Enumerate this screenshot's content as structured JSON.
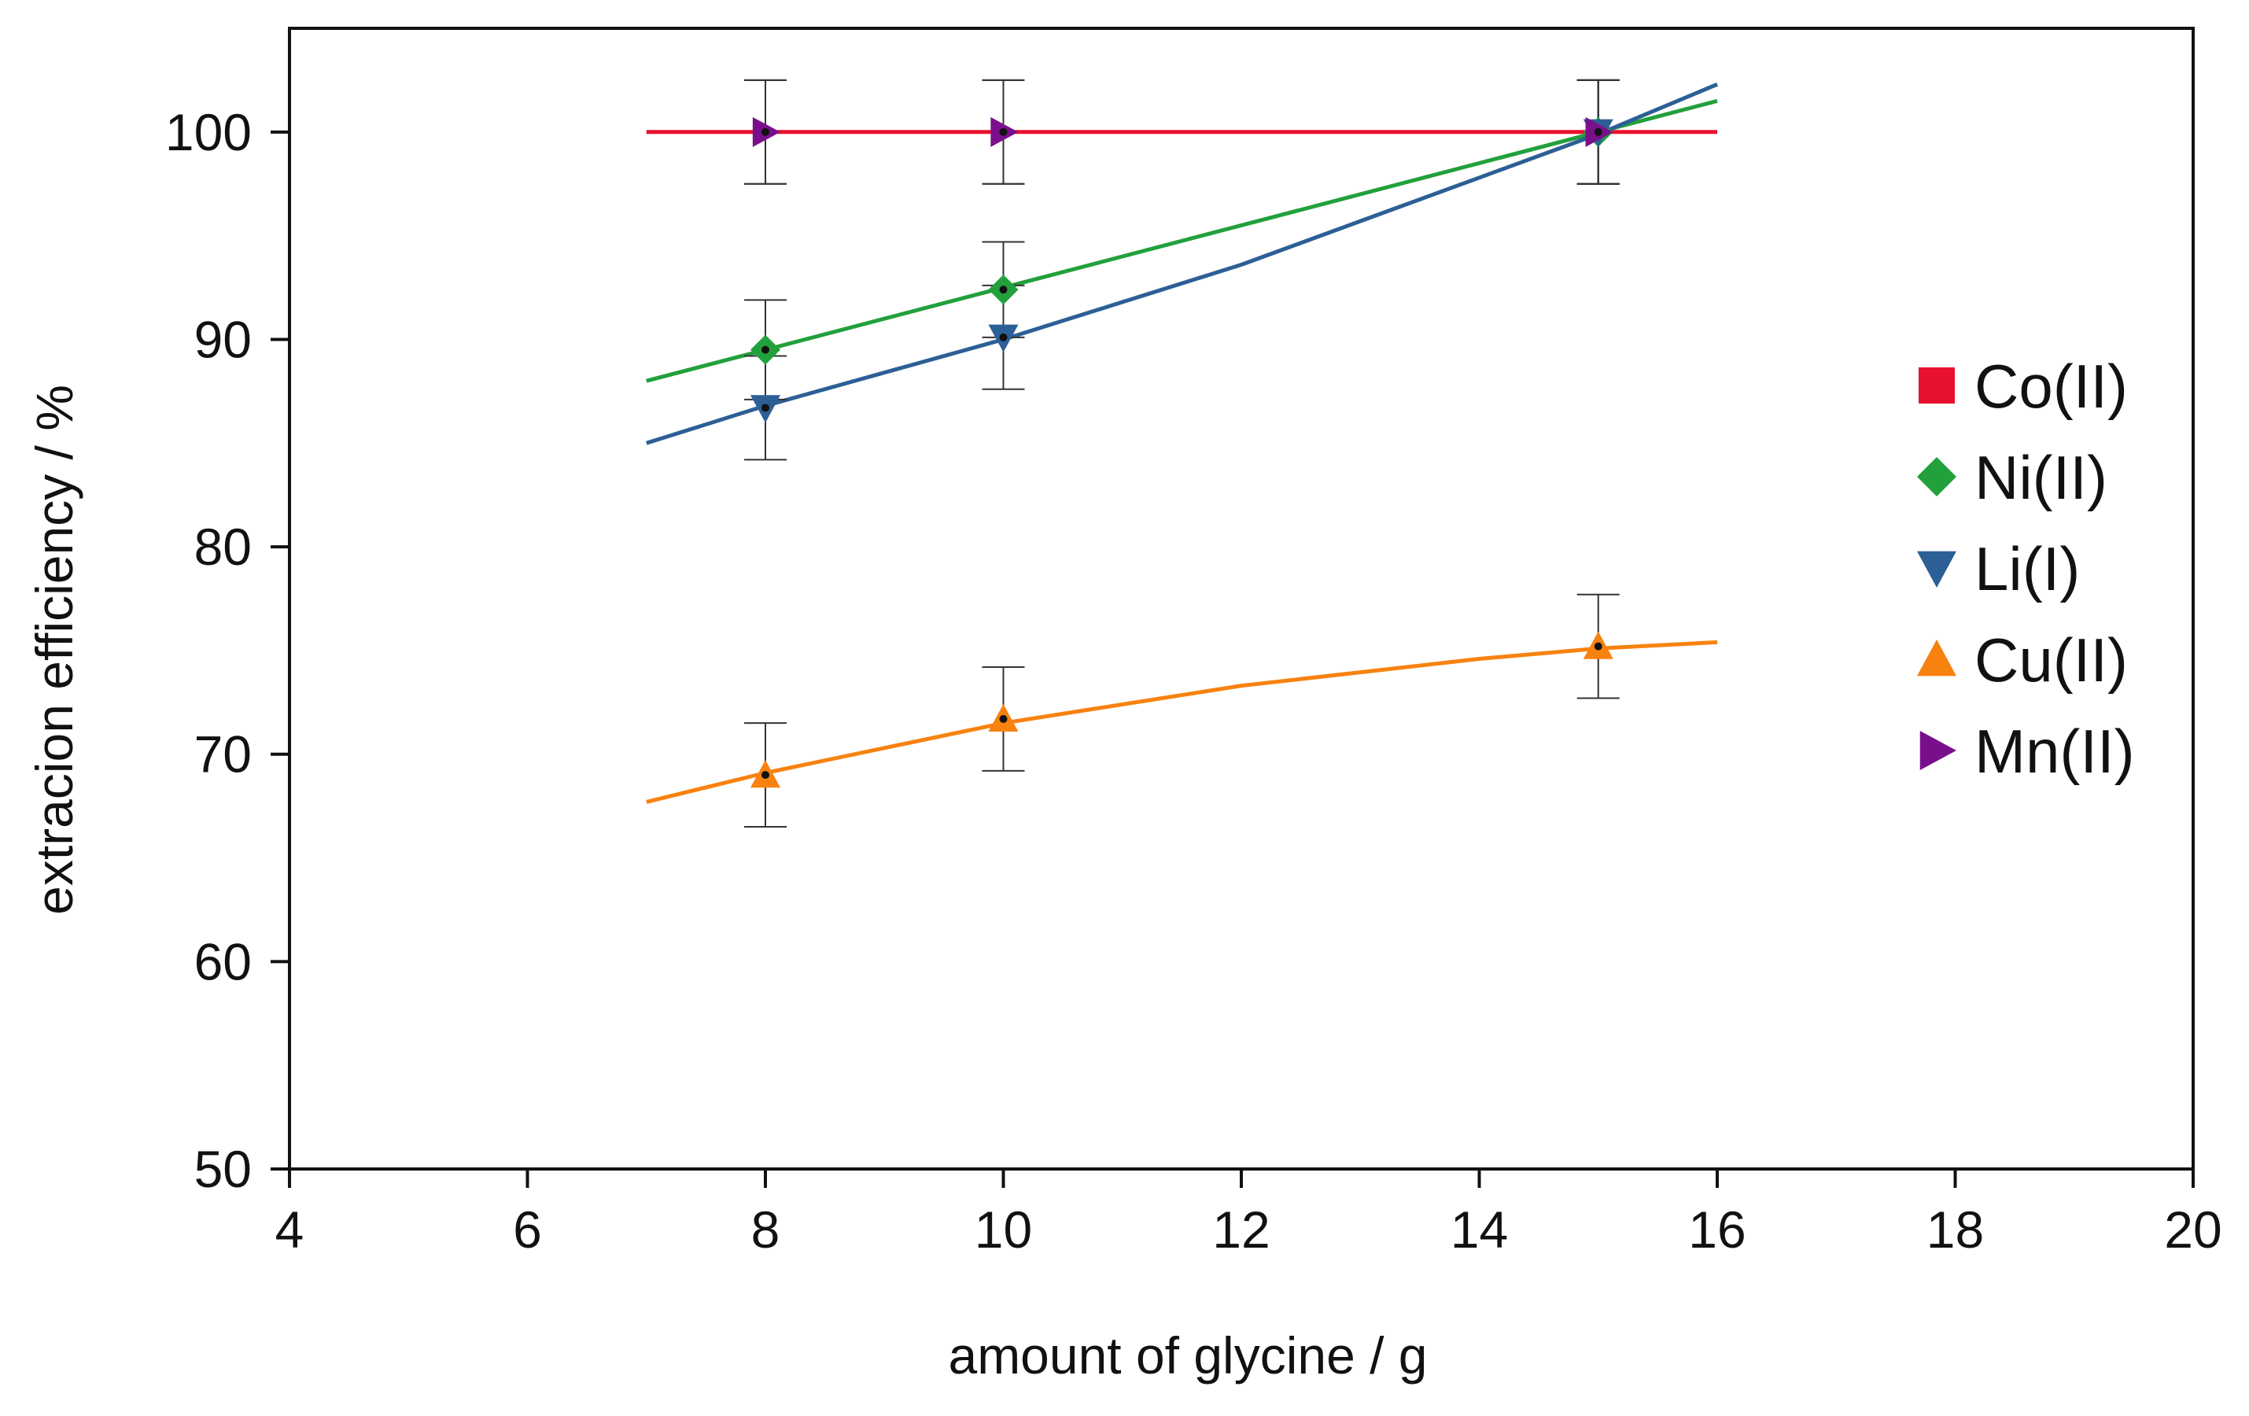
{
  "chart_data": {
    "type": "scatter",
    "title": "",
    "xlabel": "amount of glycine / g",
    "ylabel": "extracion efficiency / %",
    "xlim": [
      4,
      20
    ],
    "ylim": [
      50,
      105
    ],
    "xticks": [
      4,
      6,
      8,
      10,
      12,
      14,
      16,
      18,
      20
    ],
    "yticks": [
      50,
      60,
      70,
      80,
      90,
      100
    ],
    "grid": false,
    "legend_position": "right",
    "series": [
      {
        "name": "Co(II)",
        "color": "#e8112d",
        "marker": "square",
        "x": [
          8,
          10,
          15
        ],
        "y": [
          100,
          100,
          100
        ],
        "error": [
          2.5,
          2.5,
          2.5
        ],
        "fit": {
          "x": [
            7,
            16
          ],
          "y": [
            100,
            100
          ]
        }
      },
      {
        "name": "Ni(II)",
        "color": "#22a03c",
        "marker": "diamond",
        "x": [
          8,
          10,
          15
        ],
        "y": [
          89.5,
          92.4,
          100
        ],
        "error": [
          2.4,
          2.3,
          2.5
        ],
        "fit": {
          "x": [
            7,
            16
          ],
          "y": [
            88,
            101.5
          ]
        }
      },
      {
        "name": "Li(I)",
        "color": "#2c5f96",
        "marker": "triangle-down",
        "x": [
          8,
          10,
          15
        ],
        "y": [
          86.7,
          90.1,
          100
        ],
        "error": [
          2.5,
          2.5,
          2.5
        ],
        "fit": {
          "x": [
            7,
            8,
            10,
            12,
            15,
            16
          ],
          "y": [
            85.0,
            86.8,
            90.0,
            93.6,
            99.9,
            102.3
          ]
        }
      },
      {
        "name": "Cu(II)",
        "color": "#f7820f",
        "marker": "triangle-up",
        "x": [
          8,
          10,
          15
        ],
        "y": [
          69,
          71.7,
          75.2
        ],
        "error": [
          2.5,
          2.5,
          2.5
        ],
        "fit": {
          "x": [
            7,
            8,
            10,
            12,
            14,
            15,
            16
          ],
          "y": [
            67.7,
            69.1,
            71.5,
            73.3,
            74.6,
            75.1,
            75.4
          ]
        }
      },
      {
        "name": "Mn(II)",
        "color": "#7a0f8c",
        "marker": "triangle-right",
        "x": [
          8,
          10,
          15
        ],
        "y": [
          100,
          100,
          100
        ],
        "error": [
          2.5,
          2.5,
          2.5
        ],
        "fit": null
      }
    ]
  }
}
